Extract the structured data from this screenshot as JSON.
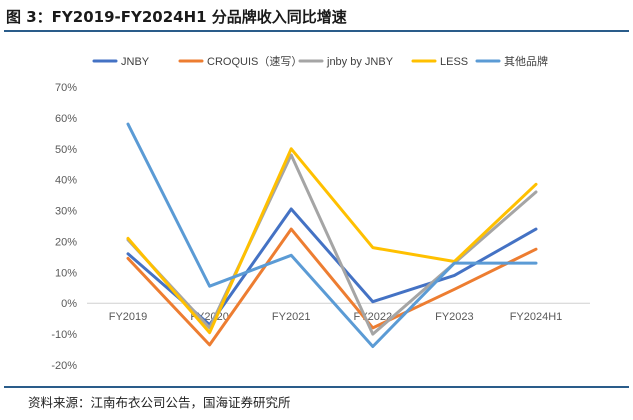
{
  "figure": {
    "title": "图 3：FY2019-FY2024H1 分品牌收入同比增速",
    "source": "资料来源：江南布衣公司公告，国海证券研究所"
  },
  "chart_data": {
    "type": "line",
    "title": "FY2019-FY2024H1 分品牌收入同比增速",
    "xlabel": "",
    "ylabel": "",
    "categories": [
      "FY2019",
      "FY2020",
      "FY2021",
      "FY2022",
      "FY2023",
      "FY2024H1"
    ],
    "y_ticks": [
      "-20%",
      "-10%",
      "0%",
      "10%",
      "20%",
      "30%",
      "40%",
      "50%",
      "60%",
      "70%"
    ],
    "ylim": [
      -20,
      70
    ],
    "unit": "%",
    "grid": false,
    "legend_position": "top",
    "series": [
      {
        "name": "JNBY",
        "color": "#4472C4",
        "values": [
          16,
          -7,
          30.5,
          0.5,
          9,
          24
        ]
      },
      {
        "name": "CROQUIS（速写）",
        "color": "#ED7D31",
        "values": [
          14.5,
          -13.5,
          24,
          -8,
          4.5,
          17.5
        ]
      },
      {
        "name": "jnby by JNBY",
        "color": "#A5A5A5",
        "values": [
          20.5,
          -8,
          48,
          -10,
          13,
          36
        ]
      },
      {
        "name": "LESS",
        "color": "#FFC000",
        "values": [
          21,
          -9.5,
          50,
          18,
          13.5,
          38.5
        ]
      },
      {
        "name": "其他品牌",
        "color": "#5B9BD5",
        "values": [
          58,
          5.5,
          15.5,
          -14,
          13,
          13
        ]
      }
    ]
  }
}
